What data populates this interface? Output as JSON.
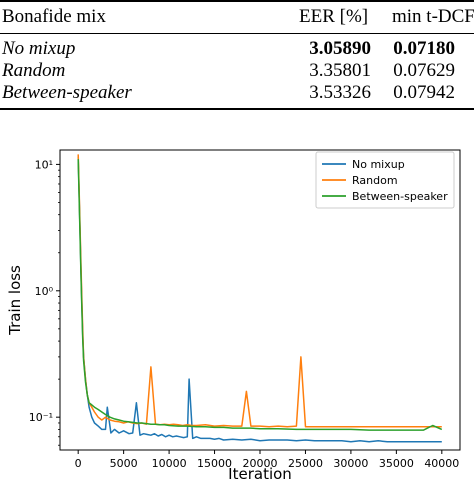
{
  "table": {
    "headers": [
      "Bonafide mix",
      "EER [%]",
      "min t-DCF"
    ],
    "rows": [
      {
        "name": "No mixup",
        "eer": "3.05890",
        "tdcf": "0.07180"
      },
      {
        "name": "Random",
        "eer": "3.35801",
        "tdcf": "0.07629"
      },
      {
        "name": "Between-speaker",
        "eer": "3.53326",
        "tdcf": "0.07942"
      }
    ]
  },
  "chart_data": {
    "type": "line",
    "xlabel": "Iteration",
    "ylabel": "Train loss",
    "yscale": "log",
    "xlim": [
      -2000,
      42000
    ],
    "ylim": [
      0.055,
      13
    ],
    "xticks": [
      0,
      5000,
      10000,
      15000,
      20000,
      25000,
      30000,
      35000,
      40000
    ],
    "xtick_labels": [
      "0",
      "5000",
      "10000",
      "15000",
      "20000",
      "25000",
      "30000",
      "35000",
      "40000"
    ],
    "yticks": [
      0.1,
      1,
      10
    ],
    "ytick_labels": [
      "10⁻¹",
      "10⁰",
      "10¹"
    ],
    "legend_position": "upper right",
    "grid": false,
    "series": [
      {
        "name": "No mixup",
        "color": "#1f77b4",
        "x": [
          0,
          100,
          200,
          300,
          400,
          500,
          600,
          800,
          1000,
          1200,
          1500,
          1800,
          2200,
          2600,
          3000,
          3200,
          3600,
          4000,
          4500,
          5000,
          5600,
          6000,
          6400,
          6800,
          7200,
          7600,
          8000,
          8400,
          8800,
          9200,
          9600,
          10000,
          10400,
          10800,
          11200,
          11600,
          12000,
          12200,
          12600,
          13000,
          13500,
          14000,
          14500,
          15000,
          15500,
          16000,
          17000,
          18000,
          19000,
          20000,
          21000,
          22000,
          23000,
          24000,
          25000,
          26000,
          27000,
          28000,
          29000,
          30000,
          31000,
          32000,
          33000,
          34000,
          35000,
          36000,
          37000,
          38000,
          39000,
          40000
        ],
        "y": [
          11.5,
          6.0,
          3.0,
          1.5,
          0.8,
          0.45,
          0.3,
          0.2,
          0.15,
          0.12,
          0.1,
          0.09,
          0.085,
          0.08,
          0.08,
          0.12,
          0.075,
          0.08,
          0.075,
          0.078,
          0.074,
          0.075,
          0.13,
          0.072,
          0.074,
          0.073,
          0.072,
          0.074,
          0.071,
          0.073,
          0.07,
          0.072,
          0.07,
          0.071,
          0.07,
          0.069,
          0.07,
          0.2,
          0.068,
          0.07,
          0.068,
          0.068,
          0.068,
          0.067,
          0.068,
          0.066,
          0.067,
          0.066,
          0.067,
          0.065,
          0.066,
          0.066,
          0.066,
          0.065,
          0.066,
          0.065,
          0.065,
          0.065,
          0.065,
          0.064,
          0.065,
          0.064,
          0.065,
          0.064,
          0.064,
          0.064,
          0.064,
          0.064,
          0.064,
          0.064
        ]
      },
      {
        "name": "Random",
        "color": "#ff7f0e",
        "x": [
          0,
          100,
          200,
          300,
          400,
          500,
          600,
          800,
          1000,
          1200,
          1500,
          1800,
          2200,
          2600,
          3000,
          3500,
          4000,
          4500,
          5000,
          5500,
          6000,
          6500,
          7000,
          7500,
          8000,
          8500,
          9000,
          9500,
          10000,
          10500,
          11000,
          11500,
          12000,
          12500,
          13000,
          14000,
          15000,
          16000,
          17000,
          18000,
          18500,
          19000,
          20000,
          21000,
          22000,
          23000,
          24000,
          24500,
          25000,
          26000,
          28000,
          30000,
          32000,
          34000,
          36000,
          38000,
          40000
        ],
        "y": [
          12.0,
          6.5,
          3.3,
          1.7,
          0.9,
          0.5,
          0.3,
          0.2,
          0.15,
          0.13,
          0.12,
          0.11,
          0.1,
          0.095,
          0.1,
          0.095,
          0.093,
          0.092,
          0.09,
          0.092,
          0.09,
          0.089,
          0.09,
          0.088,
          0.25,
          0.088,
          0.087,
          0.088,
          0.087,
          0.088,
          0.087,
          0.086,
          0.087,
          0.086,
          0.086,
          0.087,
          0.085,
          0.086,
          0.085,
          0.085,
          0.16,
          0.085,
          0.085,
          0.084,
          0.085,
          0.084,
          0.085,
          0.3,
          0.084,
          0.084,
          0.084,
          0.084,
          0.084,
          0.084,
          0.084,
          0.084,
          0.084
        ]
      },
      {
        "name": "Between-speaker",
        "color": "#2ca02c",
        "x": [
          0,
          100,
          200,
          300,
          400,
          500,
          600,
          800,
          1000,
          1200,
          1500,
          1800,
          2200,
          2600,
          3000,
          3500,
          4000,
          4500,
          5000,
          5500,
          6000,
          6500,
          7000,
          7500,
          8000,
          8500,
          9000,
          9500,
          10000,
          11000,
          12000,
          13000,
          14000,
          15000,
          16000,
          17000,
          18000,
          19000,
          20000,
          22000,
          24000,
          26000,
          28000,
          30000,
          32000,
          34000,
          36000,
          38000,
          39000,
          40000
        ],
        "y": [
          11.0,
          5.5,
          2.8,
          1.4,
          0.75,
          0.42,
          0.28,
          0.19,
          0.15,
          0.13,
          0.125,
          0.12,
          0.115,
          0.11,
          0.105,
          0.1,
          0.097,
          0.095,
          0.093,
          0.092,
          0.091,
          0.09,
          0.09,
          0.089,
          0.088,
          0.088,
          0.087,
          0.087,
          0.086,
          0.085,
          0.085,
          0.084,
          0.084,
          0.083,
          0.083,
          0.082,
          0.082,
          0.082,
          0.081,
          0.081,
          0.08,
          0.08,
          0.08,
          0.08,
          0.079,
          0.079,
          0.079,
          0.079,
          0.086,
          0.08
        ]
      }
    ]
  }
}
